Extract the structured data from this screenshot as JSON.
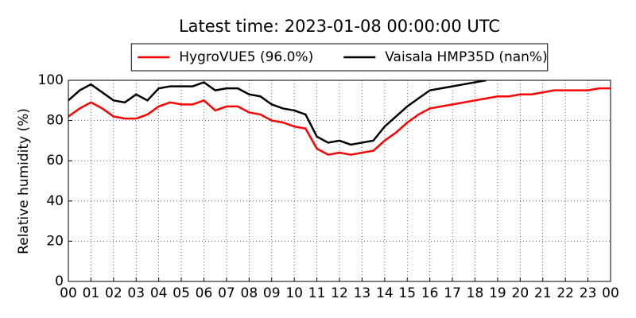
{
  "chart_data": {
    "type": "line",
    "title": "Latest time: 2023-01-08 00:00:00 UTC",
    "y_label": "Relative humidity (%)",
    "x": [
      0,
      0.5,
      1,
      1.5,
      2,
      2.5,
      3,
      3.5,
      4,
      4.5,
      5,
      5.5,
      6,
      6.5,
      7,
      7.5,
      8,
      8.5,
      9,
      9.5,
      10,
      10.5,
      11,
      11.5,
      12,
      12.5,
      13,
      13.5,
      14,
      14.5,
      15,
      15.5,
      16,
      16.5,
      17,
      17.5,
      18,
      18.5,
      19,
      19.5,
      20,
      20.5,
      21,
      21.5,
      22,
      22.5,
      23,
      23.5,
      24
    ],
    "series": [
      {
        "name": "HygroVUE5 (96.0%)",
        "color": "#ff0000",
        "values": [
          82,
          86,
          89,
          86,
          82,
          81,
          81,
          83,
          87,
          89,
          88,
          88,
          90,
          85,
          87,
          87,
          84,
          83,
          80,
          79,
          77,
          76,
          66,
          63,
          64,
          63,
          64,
          65,
          70,
          74,
          79,
          83,
          86,
          87,
          88,
          89,
          90,
          91,
          92,
          92,
          93,
          93,
          94,
          95,
          95,
          95,
          95,
          96,
          96
        ]
      },
      {
        "name": "Vaisala HMP35D (nan%)",
        "color": "#000000",
        "values": [
          90,
          95,
          98,
          94,
          90,
          89,
          93,
          90,
          96,
          97,
          97,
          97,
          99,
          95,
          96,
          96,
          93,
          92,
          88,
          86,
          85,
          83,
          72,
          69,
          70,
          68,
          69,
          70,
          77,
          82,
          87,
          91,
          95,
          96,
          97,
          98,
          99,
          100,
          null,
          null,
          null,
          null,
          null,
          null,
          null,
          null,
          null,
          null,
          null
        ]
      }
    ],
    "xlim": [
      0,
      24
    ],
    "xticks": [
      {
        "value": 0,
        "label": "00"
      },
      {
        "value": 1,
        "label": "01"
      },
      {
        "value": 2,
        "label": "02"
      },
      {
        "value": 3,
        "label": "03"
      },
      {
        "value": 4,
        "label": "04"
      },
      {
        "value": 5,
        "label": "05"
      },
      {
        "value": 6,
        "label": "06"
      },
      {
        "value": 7,
        "label": "07"
      },
      {
        "value": 8,
        "label": "08"
      },
      {
        "value": 9,
        "label": "09"
      },
      {
        "value": 10,
        "label": "10"
      },
      {
        "value": 11,
        "label": "11"
      },
      {
        "value": 12,
        "label": "12"
      },
      {
        "value": 13,
        "label": "13"
      },
      {
        "value": 14,
        "label": "14"
      },
      {
        "value": 15,
        "label": "15"
      },
      {
        "value": 16,
        "label": "16"
      },
      {
        "value": 17,
        "label": "17"
      },
      {
        "value": 18,
        "label": "18"
      },
      {
        "value": 19,
        "label": "19"
      },
      {
        "value": 20,
        "label": "20"
      },
      {
        "value": 21,
        "label": "21"
      },
      {
        "value": 22,
        "label": "22"
      },
      {
        "value": 23,
        "label": "23"
      },
      {
        "value": 24,
        "label": "00"
      }
    ],
    "ylim": [
      0,
      100
    ],
    "yticks": [
      0,
      20,
      40,
      60,
      80,
      100
    ],
    "grid": true,
    "legend": "top"
  }
}
